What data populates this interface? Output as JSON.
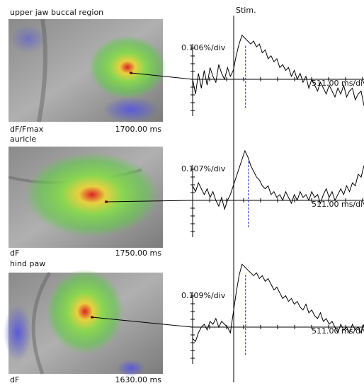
{
  "stim_label": "Stim.",
  "panels": [
    {
      "region": "upper jaw buccal region",
      "measure": "dF/Fmax",
      "time": "1700.00 ms",
      "amplitude_scale": {
        "value": 0.106,
        "label": "0.106%/div"
      },
      "time_scale": "511.00 ms/div",
      "trace": [
        0.0,
        -0.05,
        0.02,
        -0.03,
        0.03,
        -0.02,
        0.04,
        0.01,
        -0.01,
        0.05,
        0.02,
        0.0,
        0.04,
        0.01,
        0.03,
        0.08,
        0.12,
        0.15,
        0.14,
        0.13,
        0.12,
        0.13,
        0.11,
        0.12,
        0.09,
        0.1,
        0.07,
        0.08,
        0.06,
        0.07,
        0.04,
        0.05,
        0.03,
        0.04,
        0.01,
        0.03,
        0.0,
        0.02,
        -0.01,
        0.01,
        -0.03,
        0.0,
        -0.02,
        -0.04,
        -0.01,
        -0.03,
        -0.05,
        -0.02,
        -0.04,
        -0.06,
        -0.03,
        -0.05,
        -0.02,
        -0.06,
        -0.04,
        -0.03,
        -0.07,
        -0.05,
        -0.04,
        -0.09
      ]
    },
    {
      "region": "auricle",
      "measure": "dF",
      "time": "1750.00 ms",
      "amplitude_scale": {
        "value": 0.107,
        "label": "0.107%/div"
      },
      "time_scale": "511.00 ms/div",
      "trace": [
        0.05,
        0.03,
        0.06,
        0.04,
        0.02,
        0.04,
        0.01,
        0.03,
        0.0,
        -0.02,
        0.01,
        -0.03,
        0.0,
        0.02,
        0.05,
        0.08,
        0.11,
        0.14,
        0.17,
        0.15,
        0.12,
        0.1,
        0.08,
        0.07,
        0.05,
        0.04,
        0.05,
        0.02,
        0.03,
        0.01,
        0.02,
        0.0,
        0.03,
        0.01,
        -0.01,
        0.02,
        0.0,
        0.03,
        0.01,
        0.02,
        0.0,
        0.03,
        0.01,
        0.02,
        -0.01,
        0.02,
        0.04,
        0.01,
        0.03,
        0.0,
        0.02,
        0.04,
        0.02,
        0.05,
        0.03,
        0.06,
        0.05,
        0.09,
        0.08,
        0.12
      ]
    },
    {
      "region": "hind paw",
      "measure": "dF",
      "time": "1630.00 ms",
      "amplitude_scale": {
        "value": 0.109,
        "label": "0.109%/div"
      },
      "time_scale": "511.00 ms/div",
      "trace": [
        -0.04,
        -0.05,
        -0.02,
        0.0,
        0.01,
        -0.01,
        0.02,
        0.01,
        0.03,
        0.0,
        0.02,
        0.01,
        0.0,
        -0.02,
        0.05,
        0.12,
        0.18,
        0.22,
        0.21,
        0.2,
        0.19,
        0.18,
        0.19,
        0.17,
        0.18,
        0.16,
        0.17,
        0.15,
        0.13,
        0.14,
        0.12,
        0.1,
        0.11,
        0.09,
        0.1,
        0.08,
        0.09,
        0.07,
        0.06,
        0.08,
        0.05,
        0.06,
        0.04,
        0.03,
        0.05,
        0.02,
        0.03,
        0.01,
        0.02,
        0.0,
        -0.02,
        0.01,
        -0.01,
        0.0,
        -0.02,
        0.01,
        -0.01,
        0.0,
        -0.02,
        0.01
      ]
    }
  ]
}
